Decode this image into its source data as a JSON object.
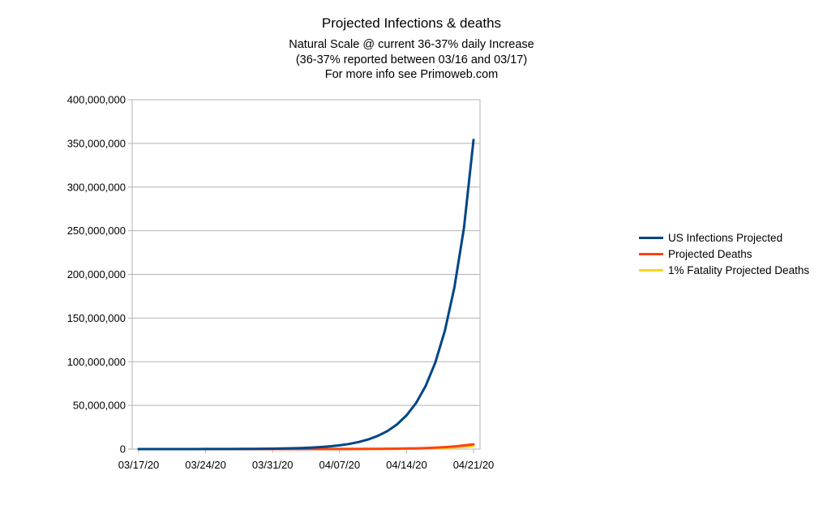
{
  "chart_data": {
    "type": "line",
    "title": "Projected Infections & deaths",
    "subtitle_lines": [
      "Natural Scale @ current 36-37% daily Increase",
      "(36-37% reported between 03/16 and 03/17)",
      "For more info see Primoweb.com"
    ],
    "xlabel": "",
    "ylabel": "",
    "ylim": [
      0,
      400000000
    ],
    "y_ticks": [
      {
        "value": 0,
        "label": "0"
      },
      {
        "value": 50000000,
        "label": "50,000,000"
      },
      {
        "value": 100000000,
        "label": "100,000,000"
      },
      {
        "value": 150000000,
        "label": "150,000,000"
      },
      {
        "value": 200000000,
        "label": "200,000,000"
      },
      {
        "value": 250000000,
        "label": "250,000,000"
      },
      {
        "value": 300000000,
        "label": "300,000,000"
      },
      {
        "value": 350000000,
        "label": "350,000,000"
      },
      {
        "value": 400000000,
        "label": "400,000,000"
      }
    ],
    "x_ticks": [
      {
        "index": 0,
        "label": "03/17/20"
      },
      {
        "index": 7,
        "label": "03/24/20"
      },
      {
        "index": 14,
        "label": "03/31/20"
      },
      {
        "index": 21,
        "label": "04/07/20"
      },
      {
        "index": 28,
        "label": "04/14/20"
      },
      {
        "index": 35,
        "label": "04/21/20"
      }
    ],
    "grid": true,
    "legend_position": "right",
    "x": [
      "03/17/20",
      "03/18/20",
      "03/19/20",
      "03/20/20",
      "03/21/20",
      "03/22/20",
      "03/23/20",
      "03/24/20",
      "03/25/20",
      "03/26/20",
      "03/27/20",
      "03/28/20",
      "03/29/20",
      "03/30/20",
      "03/31/20",
      "04/01/20",
      "04/02/20",
      "04/03/20",
      "04/04/20",
      "04/05/20",
      "04/06/20",
      "04/07/20",
      "04/08/20",
      "04/09/20",
      "04/10/20",
      "04/11/20",
      "04/12/20",
      "04/13/20",
      "04/14/20",
      "04/15/20",
      "04/16/20",
      "04/17/20",
      "04/18/20",
      "04/19/20",
      "04/20/20",
      "04/21/20"
    ],
    "series": [
      {
        "name": "US Infections Projected",
        "color": "#004586",
        "values": [
          6000,
          8200,
          11200,
          15300,
          20900,
          28600,
          39200,
          53600,
          73300,
          100300,
          137200,
          187700,
          256700,
          351200,
          480500,
          657300,
          899200,
          1230000,
          1683000,
          2302000,
          3149000,
          4308000,
          5893000,
          8062000,
          11030000,
          15090000,
          20640000,
          28240000,
          38630000,
          52850000,
          72300000,
          98900000,
          135300000,
          185100000,
          253300000,
          354000000
        ]
      },
      {
        "name": "Projected Deaths",
        "color": "#ff420e",
        "values": [
          100,
          136,
          186,
          255,
          348,
          477,
          652,
          892,
          1220,
          1670,
          2284,
          3125,
          4275,
          5848,
          8000,
          10944,
          14971,
          20480,
          28017,
          38327,
          52432,
          71727,
          98122,
          134231,
          183628,
          251203,
          343646,
          470108,
          643108,
          879772,
          1203528,
          1646426,
          2252311,
          3081162,
          4215030,
          5500000
        ]
      },
      {
        "name": "1% Fatality Projected Deaths",
        "color": "#ffd320",
        "values": [
          60,
          82,
          112,
          153,
          209,
          286,
          392,
          536,
          733,
          1003,
          1372,
          1877,
          2567,
          3512,
          4805,
          6573,
          8992,
          12300,
          16830,
          23020,
          31490,
          43080,
          58930,
          80620,
          110300,
          150900,
          206400,
          282400,
          386300,
          528500,
          723000,
          989000,
          1353000,
          1851000,
          2533000,
          3540000
        ]
      }
    ]
  }
}
